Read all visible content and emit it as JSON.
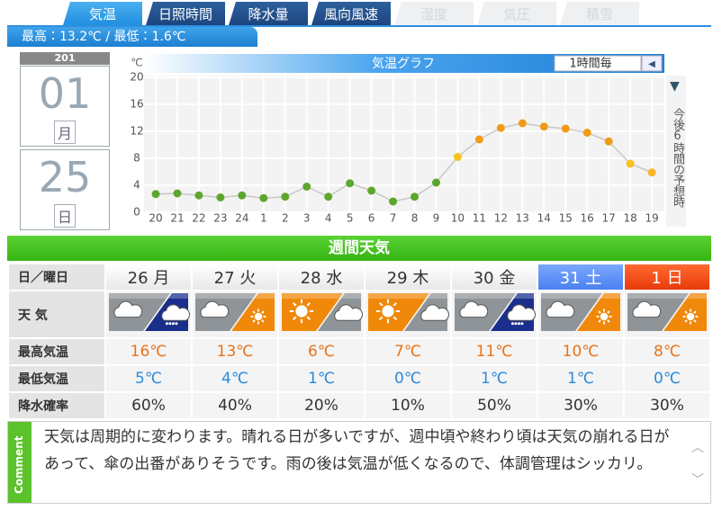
{
  "tabs": [
    "気温",
    "日照時間",
    "降水量",
    "風向風速",
    "湿度",
    "気圧",
    "積雪"
  ],
  "summary": "最高：13.2℃ / 最低：1.6℃",
  "date": {
    "year": "201",
    "month": "01",
    "month_unit": "月",
    "day": "25",
    "day_unit": "日"
  },
  "chart_data": {
    "type": "line",
    "title": "気温グラフ",
    "interval": "1時間毎",
    "y_unit": "℃",
    "side_note": "今後6時間の予想時",
    "categories": [
      "20",
      "21",
      "22",
      "23",
      "24",
      "1",
      "2",
      "3",
      "4",
      "5",
      "6",
      "7",
      "8",
      "9",
      "10",
      "11",
      "12",
      "13",
      "14",
      "15",
      "16",
      "17",
      "18",
      "19"
    ],
    "values": [
      2.7,
      2.8,
      2.5,
      2.2,
      2.5,
      2.1,
      2.3,
      3.8,
      2.3,
      4.3,
      3.2,
      1.6,
      2.3,
      4.4,
      8.2,
      10.8,
      12.5,
      13.2,
      12.7,
      12.4,
      11.8,
      10.5,
      7.2,
      5.9
    ],
    "colors": [
      "#5ea62e",
      "#5ea62e",
      "#5ea62e",
      "#5ea62e",
      "#5ea62e",
      "#5ea62e",
      "#5ea62e",
      "#5ea62e",
      "#5ea62e",
      "#5ea62e",
      "#5ea62e",
      "#5ea62e",
      "#5ea62e",
      "#5ea62e",
      "#f7c21c",
      "#f29a16",
      "#f29a16",
      "#f29a16",
      "#f29a16",
      "#f29a16",
      "#f29a16",
      "#f29a16",
      "#f7c21c",
      "#f7b52a"
    ],
    "ylim": [
      0,
      20
    ],
    "yticks": [
      0,
      4,
      8,
      12,
      16,
      20
    ],
    "grid": true
  },
  "weekly": {
    "title": "週間天気",
    "row_labels": [
      "日／曜日",
      "天 気",
      "最高気温",
      "最低気温",
      "降水確率"
    ],
    "days": [
      {
        "date": "26",
        "weekday": "月"
      },
      {
        "date": "27",
        "weekday": "火"
      },
      {
        "date": "28",
        "weekday": "水"
      },
      {
        "date": "29",
        "weekday": "木"
      },
      {
        "date": "30",
        "weekday": "金"
      },
      {
        "date": "31",
        "weekday": "土"
      },
      {
        "date": "1",
        "weekday": "日"
      }
    ],
    "high": [
      "16℃",
      "13℃",
      "6℃",
      "7℃",
      "11℃",
      "10℃",
      "8℃"
    ],
    "low": [
      "5℃",
      "4℃",
      "1℃",
      "0℃",
      "1℃",
      "1℃",
      "0℃"
    ],
    "precip": [
      "60%",
      "40%",
      "20%",
      "10%",
      "50%",
      "30%",
      "30%"
    ]
  },
  "comment": {
    "label": "Comment",
    "text": "天気は周期的に変わります。晴れる日が多いですが、週中頃や終わり頃は天気の崩れる日があって、傘の出番がありそうです。雨の後は気温が低くなるので、体調管理はシッカリ。"
  }
}
